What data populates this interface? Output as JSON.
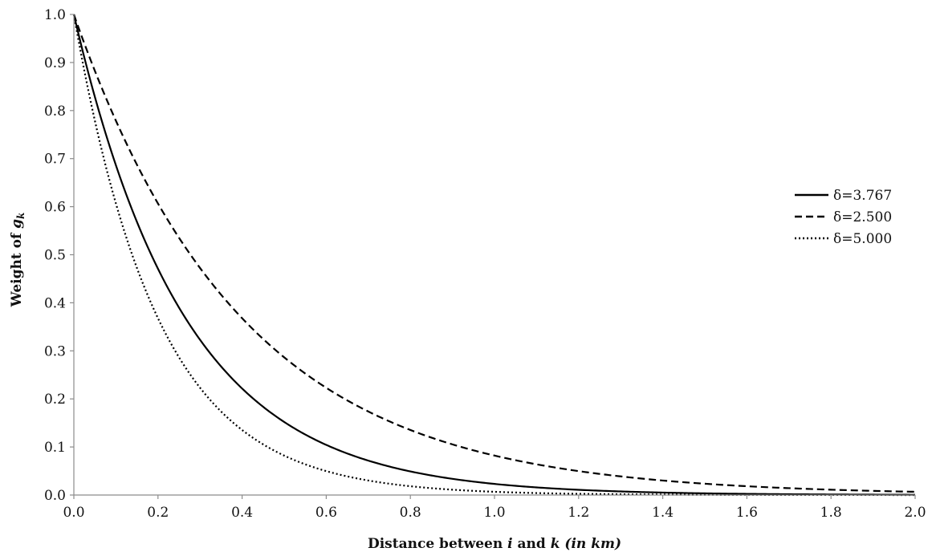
{
  "chart_data": {
    "type": "line",
    "title": "",
    "xlabel": {
      "prefix": "Distance between ",
      "var_i": "i",
      "middle": " and ",
      "var_k": "k",
      "unit": " (in km)"
    },
    "ylabel": {
      "prefix": "Weight of ",
      "var": "g",
      "sub": "k"
    },
    "xlim": [
      0.0,
      2.0
    ],
    "ylim": [
      0.0,
      1.0
    ],
    "x_ticks": [
      "0.0",
      "0.2",
      "0.4",
      "0.6",
      "0.8",
      "1.0",
      "1.2",
      "1.4",
      "1.6",
      "1.8",
      "2.0"
    ],
    "y_ticks": [
      "0.0",
      "0.1",
      "0.2",
      "0.3",
      "0.4",
      "0.5",
      "0.6",
      "0.7",
      "0.8",
      "0.9",
      "1.0"
    ],
    "grid": false,
    "legend_position": "right",
    "x": [
      0.0,
      0.05,
      0.1,
      0.15,
      0.2,
      0.25,
      0.3,
      0.35,
      0.4,
      0.45,
      0.5,
      0.55,
      0.6,
      0.65,
      0.7,
      0.75,
      0.8,
      0.85,
      0.9,
      0.95,
      1.0,
      1.05,
      1.1,
      1.15,
      1.2,
      1.25,
      1.3,
      1.35,
      1.4,
      1.45,
      1.5,
      1.55,
      1.6,
      1.65,
      1.7,
      1.75,
      1.8,
      1.85,
      1.9,
      1.95,
      2.0
    ],
    "series": [
      {
        "name": "δ=3.767",
        "style": "solid",
        "delta": 3.767,
        "values": [
          1.0,
          0.828,
          0.686,
          0.568,
          0.471,
          0.39,
          0.323,
          0.267,
          0.222,
          0.183,
          0.152,
          0.126,
          0.104,
          0.086,
          0.072,
          0.059,
          0.049,
          0.041,
          0.034,
          0.028,
          0.023,
          0.019,
          0.016,
          0.013,
          0.011,
          0.009,
          0.007,
          0.006,
          0.005,
          0.004,
          0.004,
          0.003,
          0.002,
          0.002,
          0.002,
          0.001,
          0.001,
          0.001,
          0.001,
          0.001,
          0.001
        ]
      },
      {
        "name": "δ=2.500",
        "style": "dashed",
        "delta": 2.5,
        "values": [
          1.0,
          0.882,
          0.779,
          0.687,
          0.607,
          0.535,
          0.472,
          0.417,
          0.368,
          0.325,
          0.287,
          0.253,
          0.223,
          0.197,
          0.174,
          0.153,
          0.135,
          0.119,
          0.105,
          0.093,
          0.082,
          0.072,
          0.064,
          0.056,
          0.05,
          0.044,
          0.039,
          0.034,
          0.03,
          0.027,
          0.024,
          0.021,
          0.018,
          0.016,
          0.014,
          0.013,
          0.011,
          0.01,
          0.009,
          0.008,
          0.007
        ]
      },
      {
        "name": "δ=5.000",
        "style": "dotted",
        "delta": 5.0,
        "values": [
          1.0,
          0.779,
          0.607,
          0.472,
          0.368,
          0.287,
          0.223,
          0.174,
          0.135,
          0.105,
          0.082,
          0.064,
          0.05,
          0.039,
          0.03,
          0.024,
          0.018,
          0.014,
          0.011,
          0.009,
          0.007,
          0.005,
          0.004,
          0.003,
          0.002,
          0.002,
          0.002,
          0.001,
          0.001,
          0.001,
          0.001,
          0.0,
          0.0,
          0.0,
          0.0,
          0.0,
          0.0,
          0.0,
          0.0,
          0.0,
          0.0
        ]
      }
    ]
  }
}
